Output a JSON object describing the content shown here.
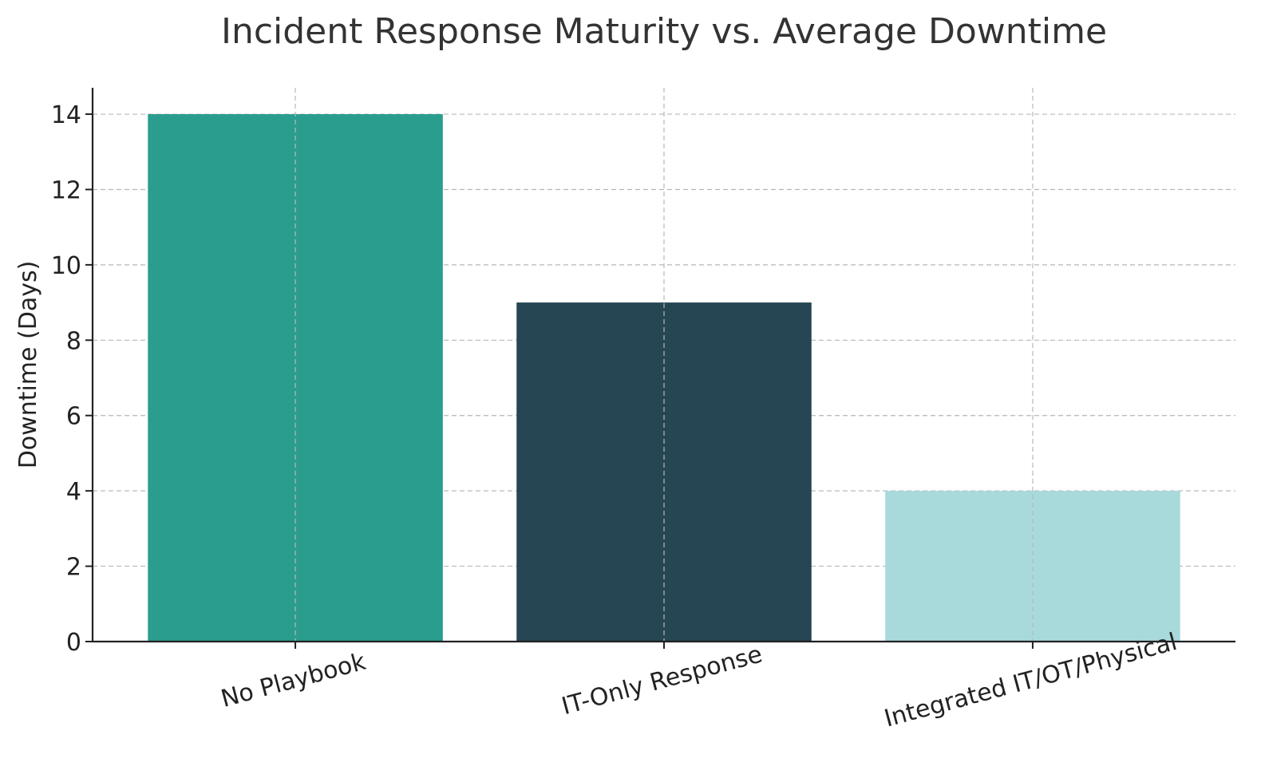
{
  "chart_data": {
    "type": "bar",
    "title": "Incident Response Maturity vs. Average Downtime",
    "xlabel": "",
    "ylabel": "Downtime (Days)",
    "categories": [
      "No Playbook",
      "IT-Only Response",
      "Integrated IT/OT/Physical"
    ],
    "values": [
      14,
      9,
      4
    ],
    "colors": [
      "#2a9d8f",
      "#264653",
      "#a8dadc"
    ],
    "ylim": [
      0,
      14.7
    ],
    "yticks": [
      0,
      2,
      4,
      6,
      8,
      10,
      12,
      14
    ],
    "grid": true,
    "x_tick_rotation_deg": 15
  }
}
